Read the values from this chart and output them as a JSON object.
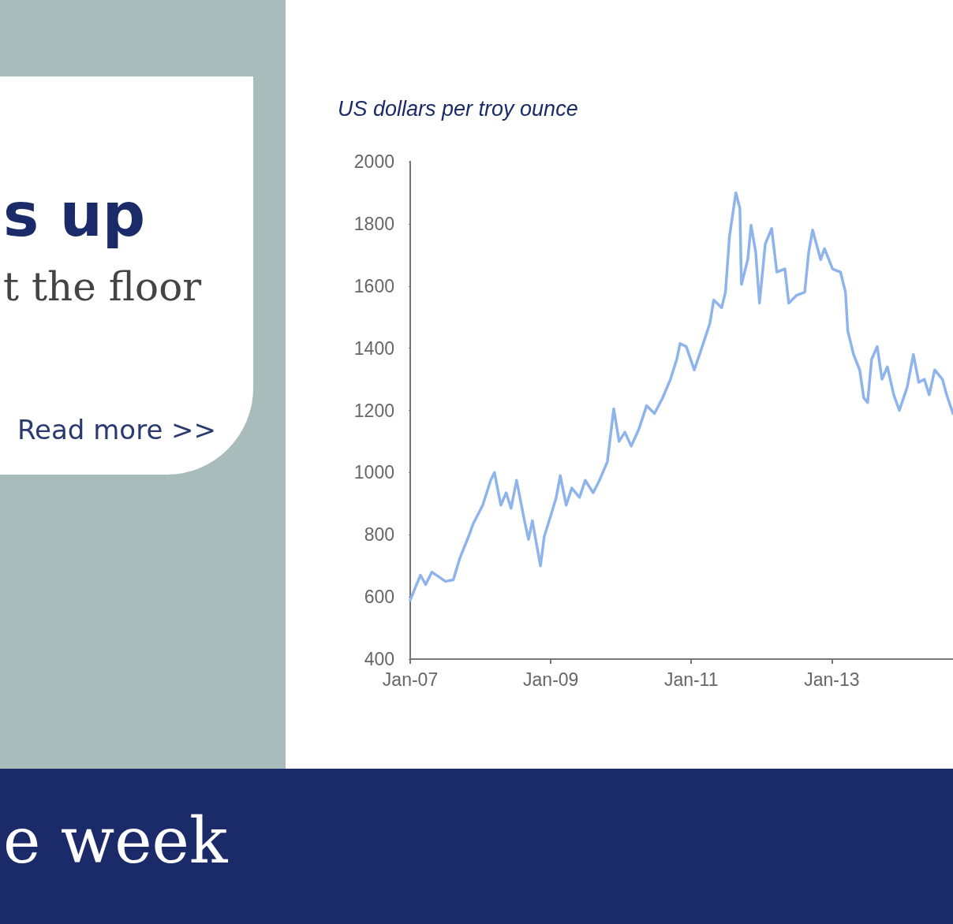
{
  "chart_data": {
    "type": "line",
    "ylabel": "US dollars per troy ounce",
    "annotations": [
      "s up",
      "t the floor",
      "Read more >>",
      "e week"
    ],
    "x": [
      "2007-01-01",
      "2007-02-23",
      "2007-03-22",
      "2007-04-24",
      "2007-07-03",
      "2007-08-13",
      "2007-09-16",
      "2007-11-04",
      "2007-11-24",
      "2008-01-13",
      "2008-02-23",
      "2008-03-14",
      "2008-04-16",
      "2008-05-14",
      "2008-06-08",
      "2008-07-07",
      "2008-08-17",
      "2008-09-07",
      "2008-09-27",
      "2008-11-08",
      "2008-11-28",
      "2008-12-31",
      "2009-01-29",
      "2009-02-19",
      "2009-03-22",
      "2009-04-20",
      "2009-05-30",
      "2009-06-29",
      "2009-08-09",
      "2009-09-11",
      "2009-10-22",
      "2009-11-24",
      "2009-12-22",
      "2010-01-21",
      "2010-02-23",
      "2010-04-04",
      "2010-05-14",
      "2010-06-24",
      "2010-08-05",
      "2010-09-15",
      "2010-10-18",
      "2010-11-04",
      "2010-12-06",
      "2011-01-17",
      "2011-02-27",
      "2011-04-08",
      "2011-04-28",
      "2011-06-08",
      "2011-06-28",
      "2011-07-19",
      "2011-08-21",
      "2011-09-11",
      "2011-09-19",
      "2011-10-22",
      "2011-11-08",
      "2011-12-02",
      "2011-12-22",
      "2012-01-21",
      "2012-02-23",
      "2012-03-21",
      "2012-05-02",
      "2012-05-22",
      "2012-07-02",
      "2012-08-13",
      "2012-09-03",
      "2012-09-23",
      "2012-11-04",
      "2012-11-24",
      "2013-01-05",
      "2013-02-15",
      "2013-03-13",
      "2013-03-25",
      "2013-04-24",
      "2013-05-26",
      "2013-06-16",
      "2013-07-06",
      "2013-07-27",
      "2013-08-25",
      "2013-09-19",
      "2013-10-17",
      "2013-11-19",
      "2013-12-18",
      "2014-01-28",
      "2014-03-01",
      "2014-03-29",
      "2014-04-27",
      "2014-05-22",
      "2014-06-20",
      "2014-07-30",
      "2014-08-21",
      "2014-09-23"
    ],
    "series": [
      {
        "color": "#8fb4ec",
        "values": [
          590,
          670,
          640,
          680,
          650,
          655,
          725,
          800,
          835,
          895,
          975,
          1000,
          895,
          935,
          885,
          975,
          845,
          785,
          845,
          700,
          795,
          860,
          920,
          990,
          895,
          950,
          920,
          975,
          935,
          975,
          1035,
          1205,
          1100,
          1130,
          1085,
          1140,
          1215,
          1190,
          1240,
          1300,
          1365,
          1415,
          1405,
          1330,
          1405,
          1480,
          1555,
          1530,
          1580,
          1760,
          1900,
          1850,
          1605,
          1685,
          1795,
          1710,
          1545,
          1735,
          1785,
          1645,
          1655,
          1545,
          1570,
          1580,
          1710,
          1780,
          1685,
          1720,
          1655,
          1645,
          1580,
          1455,
          1380,
          1330,
          1240,
          1225,
          1365,
          1405,
          1300,
          1340,
          1250,
          1200,
          1275,
          1380,
          1290,
          1300,
          1250,
          1330,
          1300,
          1250,
          1190
        ]
      }
    ],
    "xlim": [
      "2007-01-01",
      "2014-09-23"
    ],
    "xticks": [
      {
        "value": "2007-01-01",
        "label": "Jan-07"
      },
      {
        "value": "2009-01-01",
        "label": "Jan-09"
      },
      {
        "value": "2011-01-01",
        "label": "Jan-11"
      },
      {
        "value": "2013-01-01",
        "label": "Jan-13"
      }
    ],
    "ylim": [
      400,
      2000
    ],
    "yticks": [
      400,
      600,
      800,
      1000,
      1200,
      1400,
      1600,
      1800,
      2000
    ],
    "grid": false,
    "marker": "none",
    "line_style": "solid"
  }
}
